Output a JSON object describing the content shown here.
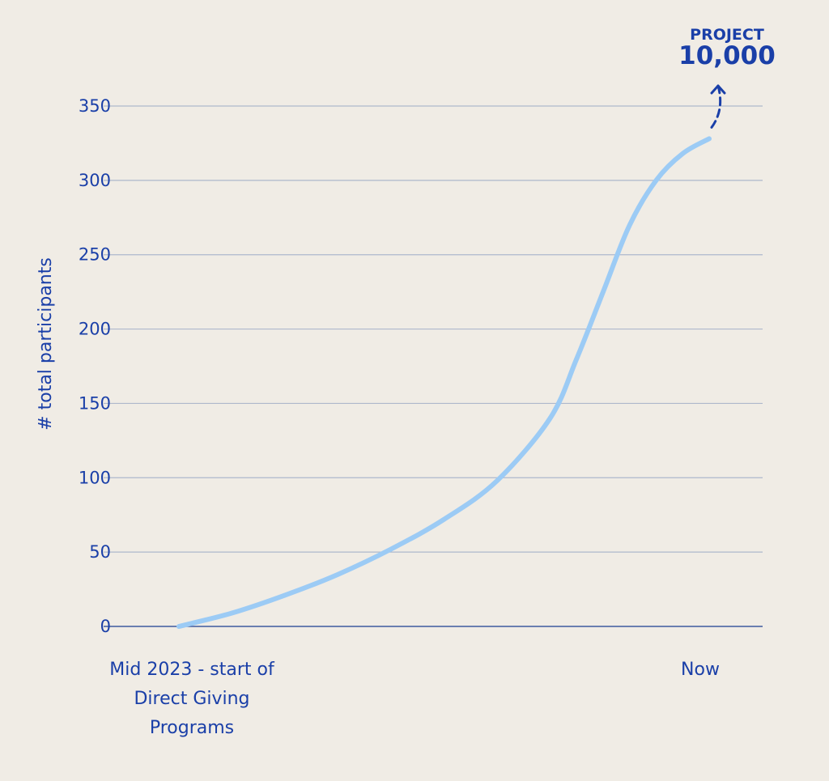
{
  "chart_data": {
    "type": "line",
    "title": "",
    "xlabel": "",
    "ylabel": "# total participants",
    "ylim": [
      0,
      350
    ],
    "yticks": [
      0,
      50,
      100,
      150,
      200,
      250,
      300,
      350
    ],
    "grid": true,
    "x_categories": [
      "Mid 2023 - start of Direct Giving Programs",
      "Now"
    ],
    "x_category_lines": [
      [
        "Mid 2023 - start of",
        "Direct Giving",
        "Programs"
      ],
      [
        "Now"
      ]
    ],
    "series": [
      {
        "color": "#9ccbf5",
        "x": [
          0,
          0.1,
          0.2,
          0.3,
          0.4,
          0.5,
          0.6,
          0.7,
          0.75,
          0.8,
          0.85,
          0.9,
          0.95,
          1.0
        ],
        "y": [
          0,
          9,
          21,
          35,
          52,
          72,
          98,
          140,
          180,
          225,
          270,
          300,
          318,
          328
        ]
      }
    ],
    "annotation": {
      "type": "dashed-arrow",
      "target_label": [
        "PROJECT",
        "10,000"
      ]
    },
    "colors": {
      "background": "#f0ece5",
      "text": "#1a3fa8",
      "grid": "#aeb8cc",
      "line": "#9ccbf5",
      "arrow": "#1a3fa8"
    }
  }
}
